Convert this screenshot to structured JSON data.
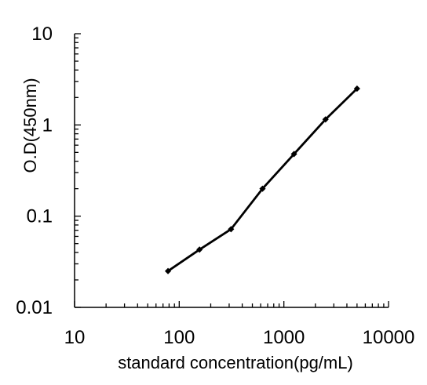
{
  "chart_data": {
    "type": "line",
    "title": "",
    "xlabel": "standard concentration(pg/mL)",
    "ylabel": "O.D(450nm)",
    "x_scale": "log",
    "y_scale": "log",
    "xlim": [
      10,
      10000
    ],
    "ylim": [
      0.01,
      10
    ],
    "x_tick_labels": [
      "10",
      "100",
      "1000",
      "10000"
    ],
    "y_tick_labels": [
      "0.01",
      "0.1",
      "1",
      "10"
    ],
    "grid": false,
    "legend": "none",
    "line_color": "#000000",
    "series": [
      {
        "x": [
          78.125,
          156.25,
          312.5,
          625,
          1250,
          2500,
          5000
        ],
        "y": [
          0.025,
          0.043,
          0.072,
          0.2,
          0.48,
          1.15,
          2.5
        ]
      }
    ]
  }
}
